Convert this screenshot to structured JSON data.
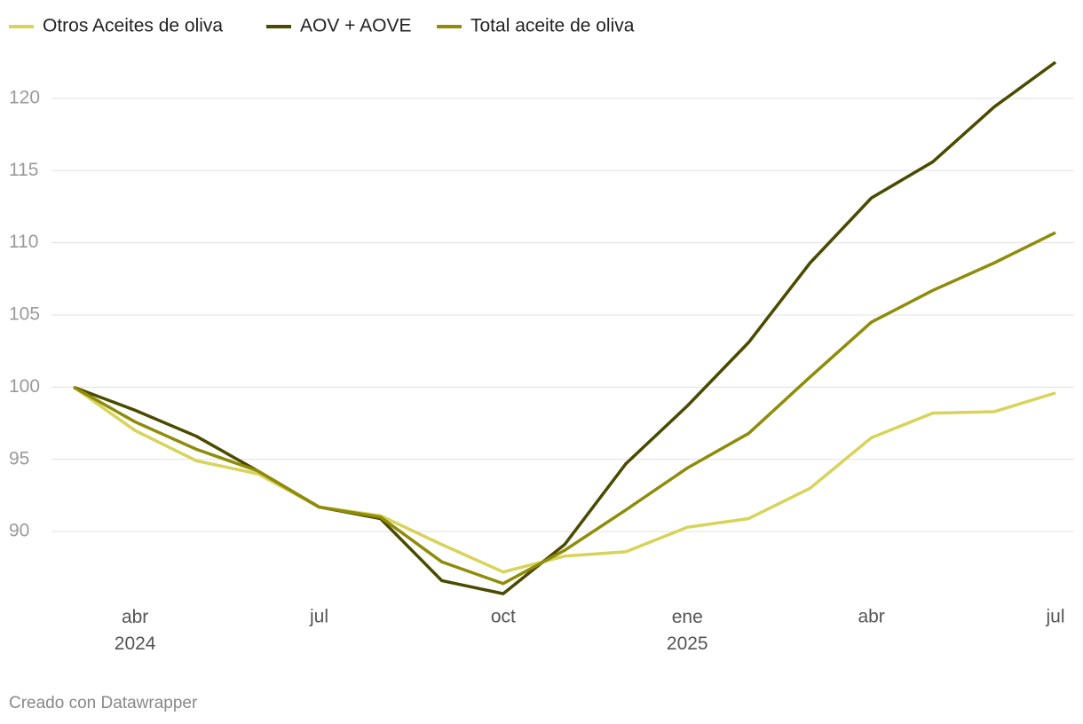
{
  "chart_data": {
    "type": "line",
    "categories": [
      null,
      "abr 2024",
      null,
      null,
      "jul",
      null,
      null,
      "oct",
      null,
      null,
      "ene 2025",
      null,
      null,
      "abr",
      null,
      null,
      "jul"
    ],
    "series": [
      {
        "name": "Otros Aceites de oliva",
        "color": "#d8d35a",
        "values": [
          100,
          97.0,
          94.9,
          94.0,
          91.7,
          91.1,
          89.1,
          87.2,
          88.3,
          88.6,
          90.3,
          90.9,
          93.0,
          96.5,
          98.2,
          98.3,
          99.6
        ]
      },
      {
        "name": "AOV + AOVE",
        "color": "#4a4a00",
        "values": [
          100,
          98.4,
          96.6,
          94.2,
          91.7,
          90.9,
          86.6,
          85.7,
          89.1,
          94.7,
          98.7,
          103.1,
          108.6,
          113.1,
          115.6,
          119.4,
          122.5
        ]
      },
      {
        "name": "Total aceite de oliva",
        "color": "#8f8c0a",
        "values": [
          100,
          97.6,
          95.7,
          94.2,
          91.7,
          91.0,
          87.9,
          86.4,
          88.7,
          91.5,
          94.4,
          96.8,
          100.7,
          104.5,
          106.7,
          108.6,
          110.7
        ]
      }
    ],
    "ylim": [
      85,
      123
    ],
    "yticks": [
      90,
      95,
      100,
      105,
      110,
      115,
      120
    ],
    "grid": true,
    "footer": "Creado con Datawrapper"
  }
}
